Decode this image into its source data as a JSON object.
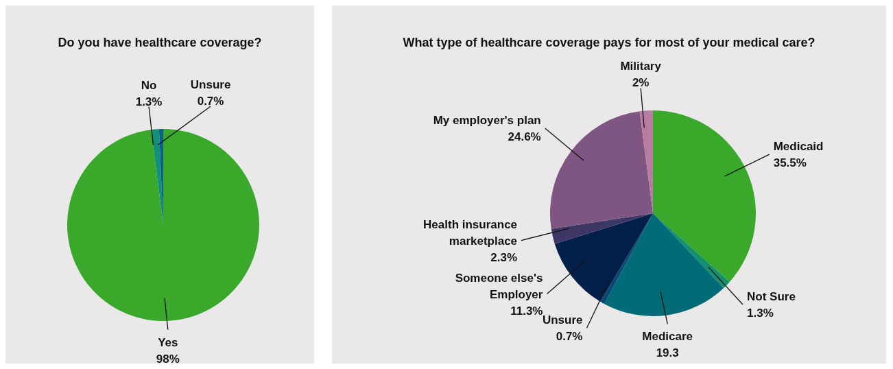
{
  "chart_data": [
    {
      "type": "pie",
      "title": "Do you have healthcare coverage?",
      "categories": [
        "Yes",
        "No",
        "Unsure"
      ],
      "values": [
        98,
        1.3,
        0.7
      ],
      "value_labels": [
        "98%",
        "1.3%",
        "0.7%"
      ],
      "colors": [
        "#3aa92b",
        "#12917a",
        "#0d5f86"
      ]
    },
    {
      "type": "pie",
      "title": "What type of healthcare coverage pays for most of your medical care?",
      "categories": [
        "Medicaid",
        "Not Sure",
        "Medicare",
        "Unsure",
        "Someone else's Employer",
        "Health insurance marketplace",
        "My employer's plan",
        "Military"
      ],
      "values": [
        35.5,
        1.3,
        19.3,
        0.7,
        11.3,
        2.3,
        24.6,
        2
      ],
      "value_labels": [
        "35.5%",
        "1.3%",
        "19.3",
        "0.7%",
        "11.3%",
        "2.3%",
        "24.6%",
        "2%"
      ],
      "colors": [
        "#3aa92b",
        "#14906f",
        "#016b78",
        "#0a4878",
        "#03204a",
        "#3d3766",
        "#7f5682",
        "#b97ca1"
      ]
    }
  ]
}
